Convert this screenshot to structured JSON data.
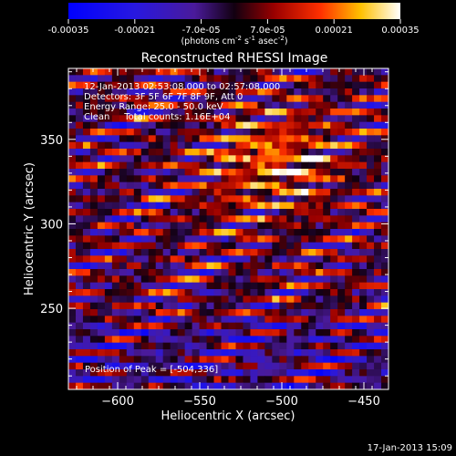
{
  "colorbar": {
    "ticks": [
      "-0.00035",
      "-0.00021",
      "-7.0e-05",
      "7.0e-05",
      "0.00021",
      "0.00035"
    ],
    "units_main": "(photons cm",
    "units_exp1": "-2",
    "units_mid": " s",
    "units_exp2": "-1",
    "units_end": " asec",
    "units_exp3": "-2",
    "units_close": ")"
  },
  "chart_data": {
    "type": "heatmap",
    "title": "Reconstructed RHESSI Image",
    "xlabel": "Heliocentric X (arcsec)",
    "ylabel": "Heliocentric Y (arcsec)",
    "xlim": [
      -630,
      -435
    ],
    "ylim": [
      202,
      392
    ],
    "xticks": [
      -600,
      -550,
      -500,
      -450
    ],
    "xtick_labels": [
      "−600",
      "−550",
      "−500",
      "−450"
    ],
    "yticks": [
      250,
      300,
      350
    ],
    "ytick_labels": [
      "250",
      "300",
      "350"
    ],
    "grid": false,
    "colormap": "RHESSI blue-purple-red-yellow-white",
    "value_range": [
      -0.00035,
      0.00035
    ],
    "annotations": [
      "12-Jan-2013 02:53:08.000 to 02:57:08.000",
      "Detectors: 3F 5F 6F 7F 8F 9F, Att 0",
      "Energy Range: 25.0 - 50.0 keV",
      "Clean     Total counts: 1.16E+04"
    ],
    "peak_label": "Position of Peak = [-504,336]",
    "peak": [
      -504,
      336
    ]
  },
  "timestamp": "17-Jan-2013 15:09"
}
